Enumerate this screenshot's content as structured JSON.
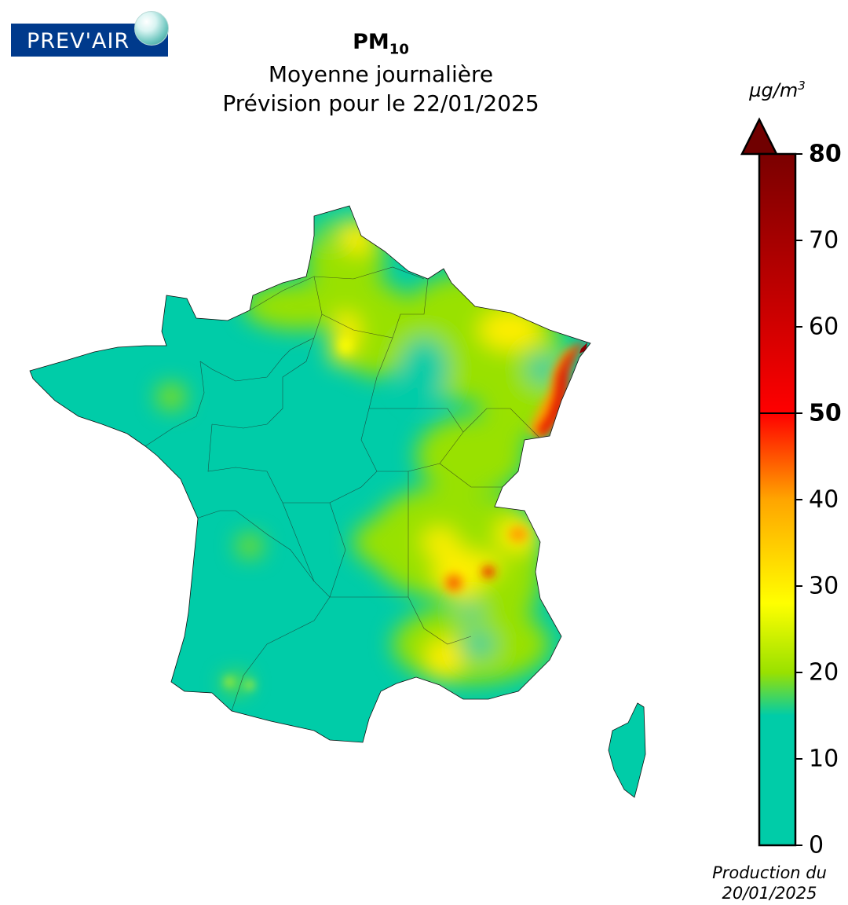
{
  "logo": {
    "text": "PREV'AIR"
  },
  "title": {
    "pollutant": "PM",
    "pollutant_sub": "10",
    "line2": "Moyenne journalière",
    "line3": "Prévision pour le 22/01/2025"
  },
  "colorbar": {
    "unit": "µg/m",
    "unit_sup": "3",
    "ticks": [
      {
        "label": "80",
        "value": 80,
        "bold": true
      },
      {
        "label": "70",
        "value": 70,
        "bold": false
      },
      {
        "label": "60",
        "value": 60,
        "bold": false
      },
      {
        "label": "50",
        "value": 50,
        "bold": true
      },
      {
        "label": "40",
        "value": 40,
        "bold": false
      },
      {
        "label": "30",
        "value": 30,
        "bold": false
      },
      {
        "label": "20",
        "value": 20,
        "bold": false
      },
      {
        "label": "10",
        "value": 10,
        "bold": false
      },
      {
        "label": "0",
        "value": 0,
        "bold": false
      }
    ],
    "range": [
      0,
      80
    ],
    "threshold": 50,
    "colors": {
      "0": "#00cca8",
      "15": "#00cca8",
      "20": "#99e100",
      "28": "#ffff00",
      "40": "#ffa500",
      "50": "#ff0000",
      "65": "#bb0000",
      "80": "#7a0000",
      "over": "#700000"
    }
  },
  "production": {
    "line1": "Production du",
    "line2": "20/01/2025"
  }
}
